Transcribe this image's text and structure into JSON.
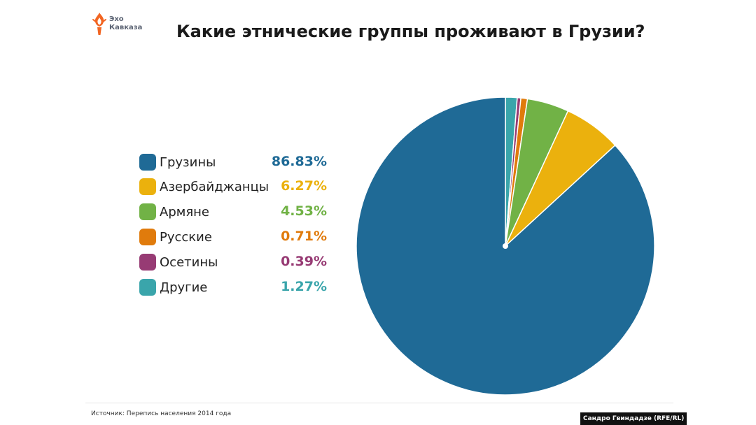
{
  "logo": {
    "line1": "Эхо",
    "line2": "Кавказа",
    "icon": "torch-flame-icon",
    "color": "#f26522"
  },
  "title": "Какие этнические группы проживают в Грузии?",
  "legend_items": [
    {
      "label": "Грузины",
      "value_text": "86.83%",
      "color": "#1f6a96"
    },
    {
      "label": "Азербайджанцы",
      "value_text": "6.27%",
      "color": "#ebb10d"
    },
    {
      "label": "Армяне",
      "value_text": "4.53%",
      "color": "#71b246"
    },
    {
      "label": "Русские",
      "value_text": "0.71%",
      "color": "#e07b0c"
    },
    {
      "label": "Осетины",
      "value_text": "0.39%",
      "color": "#973b74"
    },
    {
      "label": "Другие",
      "value_text": "1.27%",
      "color": "#3aa5ab"
    }
  ],
  "source": "Источник: Перепись населения 2014 года",
  "credit": "Сандро Гвиндадзе (RFE/RL)",
  "chart_data": {
    "type": "pie",
    "title": "Какие этнические группы проживают в Грузии?",
    "legend_position": "left",
    "unit": "%",
    "slices": [
      {
        "label": "Грузины",
        "value": 86.83,
        "color": "#1f6a96"
      },
      {
        "label": "Азербайджанцы",
        "value": 6.27,
        "color": "#ebb10d"
      },
      {
        "label": "Армяне",
        "value": 4.53,
        "color": "#71b246"
      },
      {
        "label": "Русские",
        "value": 0.71,
        "color": "#e07b0c"
      },
      {
        "label": "Осетины",
        "value": 0.39,
        "color": "#973b74"
      },
      {
        "label": "Другие",
        "value": 1.27,
        "color": "#3aa5ab"
      }
    ]
  }
}
